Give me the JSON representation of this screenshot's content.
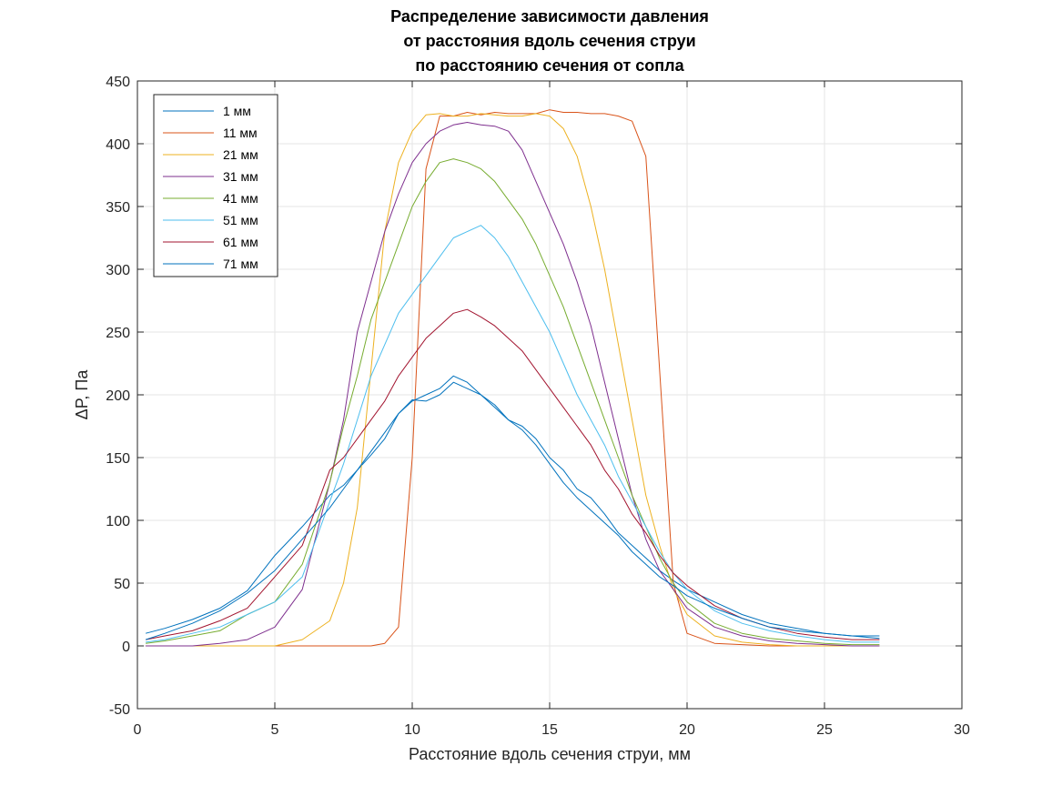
{
  "chart_data": {
    "type": "line",
    "title_lines": [
      "Распределение зависимости давления",
      "от расстояния вдоль сечения струи",
      "по расстоянию сечения от сопла"
    ],
    "xlabel": "Расстояние вдоль сечения струи, мм",
    "ylabel": "ΔP, Па",
    "xlim": [
      0,
      30
    ],
    "ylim": [
      -50,
      450
    ],
    "xticks": [
      0,
      5,
      10,
      15,
      20,
      25,
      30
    ],
    "yticks": [
      -50,
      0,
      50,
      100,
      150,
      200,
      250,
      300,
      350,
      400,
      450
    ],
    "grid": true,
    "legend_position": "top-left",
    "x": [
      0.3,
      1,
      2,
      3,
      4,
      5,
      6,
      7,
      7.5,
      8,
      8.5,
      9,
      9.5,
      10,
      10.5,
      11,
      11.5,
      12,
      12.5,
      13,
      13.5,
      14,
      14.5,
      15,
      15.5,
      16,
      16.5,
      17,
      17.5,
      18,
      18.5,
      19,
      19.5,
      20,
      21,
      22,
      23,
      24,
      25,
      26,
      27
    ],
    "series": [
      {
        "name": "1 мм",
        "color": "#0072BD",
        "values": [
          10,
          14,
          21,
          30,
          44,
          72,
          95,
          120,
          128,
          140,
          152,
          165,
          185,
          196,
          195,
          200,
          210,
          205,
          200,
          190,
          180,
          175,
          165,
          150,
          140,
          125,
          118,
          105,
          90,
          80,
          70,
          60,
          52,
          45,
          35,
          25,
          18,
          14,
          10,
          8,
          8
        ]
      },
      {
        "name": "11 мм",
        "color": "#D95319",
        "values": [
          0,
          0,
          0,
          0,
          0,
          0,
          0,
          0,
          0,
          0,
          0,
          2,
          15,
          150,
          380,
          422,
          422,
          425,
          423,
          425,
          424,
          424,
          424,
          427,
          425,
          425,
          424,
          424,
          422,
          418,
          390,
          220,
          50,
          10,
          2,
          1,
          0,
          0,
          0,
          0,
          0
        ]
      },
      {
        "name": "21 мм",
        "color": "#EDB120",
        "values": [
          0,
          0,
          0,
          0,
          0,
          0,
          5,
          20,
          50,
          110,
          220,
          330,
          385,
          410,
          423,
          424,
          422,
          422,
          424,
          423,
          422,
          422,
          424,
          422,
          412,
          390,
          350,
          300,
          240,
          180,
          120,
          80,
          45,
          25,
          8,
          3,
          1,
          0,
          0,
          0,
          0
        ]
      },
      {
        "name": "31 мм",
        "color": "#7E2F8E",
        "values": [
          0,
          0,
          0,
          2,
          5,
          15,
          45,
          130,
          180,
          250,
          290,
          330,
          360,
          385,
          400,
          410,
          415,
          417,
          415,
          414,
          410,
          395,
          370,
          345,
          320,
          290,
          255,
          210,
          165,
          120,
          85,
          60,
          45,
          30,
          15,
          8,
          4,
          2,
          1,
          0,
          0
        ]
      },
      {
        "name": "41 мм",
        "color": "#77AC30",
        "values": [
          2,
          4,
          8,
          12,
          25,
          35,
          65,
          130,
          175,
          215,
          260,
          290,
          320,
          350,
          370,
          385,
          388,
          385,
          380,
          370,
          355,
          340,
          320,
          295,
          270,
          240,
          210,
          180,
          150,
          120,
          95,
          70,
          50,
          35,
          18,
          10,
          6,
          4,
          2,
          1,
          1
        ]
      },
      {
        "name": "51 мм",
        "color": "#4DBEEE",
        "values": [
          3,
          5,
          10,
          15,
          25,
          35,
          55,
          115,
          145,
          180,
          215,
          240,
          265,
          280,
          295,
          310,
          325,
          330,
          335,
          325,
          310,
          290,
          270,
          250,
          225,
          200,
          180,
          160,
          135,
          115,
          95,
          75,
          58,
          45,
          28,
          18,
          12,
          8,
          5,
          3,
          3
        ]
      },
      {
        "name": "61 мм",
        "color": "#A2142F",
        "values": [
          5,
          8,
          12,
          20,
          30,
          55,
          80,
          140,
          150,
          165,
          180,
          195,
          215,
          230,
          245,
          255,
          265,
          268,
          262,
          255,
          245,
          235,
          220,
          205,
          190,
          175,
          160,
          140,
          125,
          105,
          90,
          72,
          58,
          48,
          32,
          22,
          15,
          10,
          7,
          5,
          5
        ]
      },
      {
        "name": "71 мм",
        "color": "#0072BD",
        "values": [
          5,
          10,
          18,
          28,
          42,
          60,
          85,
          110,
          125,
          140,
          155,
          170,
          185,
          195,
          200,
          205,
          215,
          210,
          200,
          192,
          180,
          172,
          160,
          145,
          130,
          118,
          108,
          98,
          88,
          75,
          65,
          55,
          48,
          40,
          30,
          22,
          15,
          12,
          10,
          8,
          6
        ]
      }
    ]
  }
}
